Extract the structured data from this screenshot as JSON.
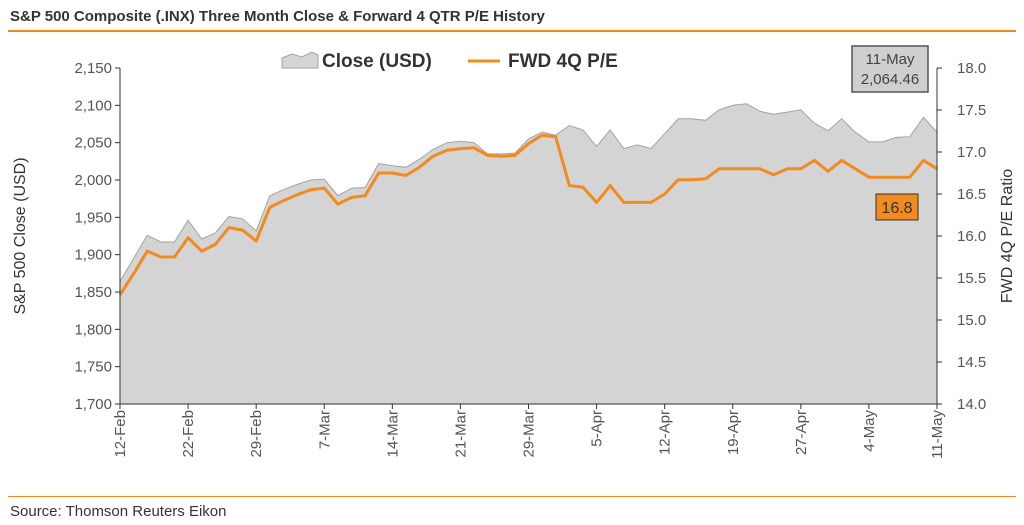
{
  "title": "S&P 500 Composite (.INX) Three Month Close & Forward 4 QTR P/E History",
  "source": "Source: Thomson Reuters Eikon",
  "callouts": {
    "close_date": "11-May",
    "close_value": "2,064.46",
    "pe_value": "16.8"
  },
  "colors": {
    "accent": "#f28a1e",
    "area_fill": "#d4d4d4",
    "area_stroke": "#a3a3a3"
  },
  "chart_data": {
    "type": "area",
    "x_tick_labels": [
      "12-Feb",
      "22-Feb",
      "29-Feb",
      "7-Mar",
      "14-Mar",
      "21-Mar",
      "29-Mar",
      "5-Apr",
      "12-Apr",
      "19-Apr",
      "27-Apr",
      "4-May",
      "11-May"
    ],
    "xlabel": "",
    "ylabel": "S&P 500 Close (USD)",
    "y2label": "FWD 4Q P/E Ratio",
    "ylim": [
      1700,
      2150
    ],
    "y2lim": [
      14.0,
      18.0
    ],
    "y_ticks": [
      "1,700",
      "1,750",
      "1,800",
      "1,850",
      "1,900",
      "1,950",
      "2,000",
      "2,050",
      "2,100",
      "2,150"
    ],
    "y2_ticks": [
      "14.0",
      "14.5",
      "15.0",
      "15.5",
      "16.0",
      "16.5",
      "17.0",
      "17.5",
      "18.0"
    ],
    "grid": false,
    "legend_position": "top-center",
    "series": [
      {
        "name": "Close (USD)",
        "type": "area",
        "axis": "left",
        "values": [
          1864,
          1895,
          1926,
          1917,
          1917,
          1946,
          1921,
          1929,
          1951,
          1948,
          1932,
          1979,
          1987,
          1994,
          2000,
          2001,
          1979,
          1989,
          1990,
          2022,
          2019,
          2017,
          2028,
          2041,
          2050,
          2052,
          2050,
          2035,
          2035,
          2036,
          2055,
          2064,
          2060,
          2073,
          2067,
          2045,
          2067,
          2042,
          2047,
          2042,
          2062,
          2082,
          2082,
          2080,
          2094,
          2100,
          2102,
          2092,
          2088,
          2091,
          2094,
          2076,
          2066,
          2082,
          2064,
          2051,
          2051,
          2057,
          2058,
          2084,
          2064
        ]
      },
      {
        "name": "FWD 4Q P/E",
        "type": "line",
        "axis": "right",
        "values": [
          15.3,
          15.55,
          15.82,
          15.75,
          15.75,
          15.98,
          15.82,
          15.9,
          16.1,
          16.07,
          15.94,
          16.34,
          16.42,
          16.49,
          16.55,
          16.57,
          16.38,
          16.46,
          16.48,
          16.75,
          16.75,
          16.72,
          16.82,
          16.95,
          17.02,
          17.04,
          17.05,
          16.96,
          16.95,
          16.96,
          17.1,
          17.2,
          17.18,
          16.6,
          16.58,
          16.4,
          16.6,
          16.4,
          16.4,
          16.4,
          16.5,
          16.67,
          16.67,
          16.68,
          16.8,
          16.8,
          16.8,
          16.8,
          16.73,
          16.8,
          16.8,
          16.9,
          16.77,
          16.9,
          16.8,
          16.7,
          16.7,
          16.7,
          16.7,
          16.9,
          16.8
        ]
      }
    ]
  }
}
